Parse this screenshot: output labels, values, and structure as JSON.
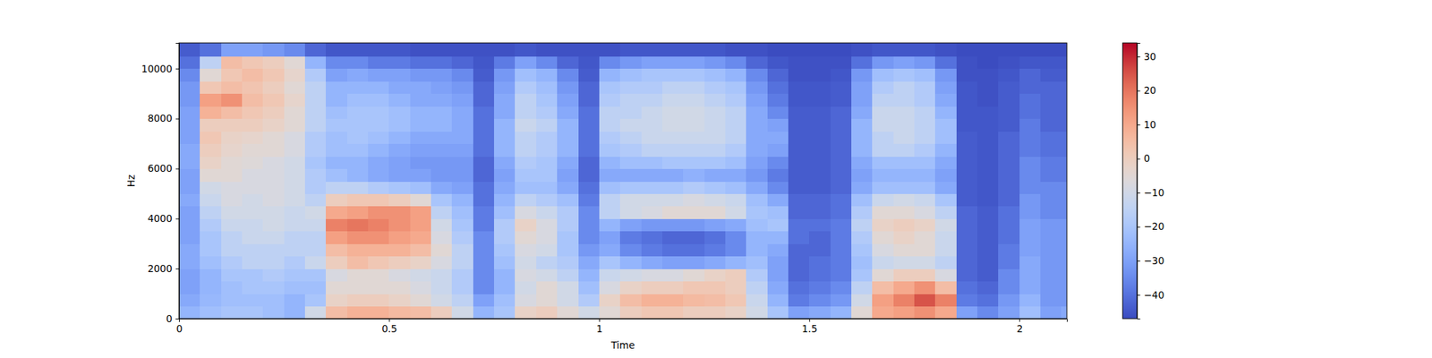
{
  "chart_data": {
    "type": "heatmap",
    "x_label": "Time",
    "y_label": "Hz",
    "xlim": [
      0,
      2.113
    ],
    "ylim": [
      0,
      11025
    ],
    "xticks": [
      0,
      0.5,
      1,
      1.5,
      2
    ],
    "yticks": [
      0,
      2000,
      4000,
      6000,
      8000,
      10000
    ],
    "x_edges": [
      0,
      0.05,
      0.1,
      0.15,
      0.2,
      0.25,
      0.3,
      0.35,
      0.4,
      0.45,
      0.5,
      0.55,
      0.6,
      0.65,
      0.7,
      0.75,
      0.8,
      0.85,
      0.9,
      0.95,
      1.0,
      1.05,
      1.1,
      1.15,
      1.2,
      1.25,
      1.3,
      1.35,
      1.4,
      1.45,
      1.5,
      1.55,
      1.6,
      1.65,
      1.7,
      1.75,
      1.8,
      1.85,
      1.9,
      1.95,
      2.0,
      2.05,
      2.1,
      2.113
    ],
    "y_edges": [
      0,
      500,
      1000,
      1500,
      2000,
      2500,
      3000,
      3500,
      4000,
      4500,
      5000,
      5500,
      6000,
      6500,
      7000,
      7500,
      8000,
      8500,
      9000,
      9500,
      10000,
      10500,
      11025
    ],
    "z": [
      [
        -25,
        -28,
        -30,
        -30,
        -28,
        -28,
        -30,
        -30,
        -30,
        -28,
        -30,
        -30,
        -28,
        -28,
        -30,
        -30,
        -30,
        -32,
        -32,
        -35,
        -40,
        -44
      ],
      [
        -22,
        -24,
        -25,
        -25,
        -22,
        -20,
        -20,
        -18,
        -15,
        -12,
        -10,
        -5,
        -2,
        0,
        2,
        0,
        8,
        12,
        2,
        -5,
        -15,
        -40
      ],
      [
        -20,
        -22,
        -22,
        -20,
        -18,
        -15,
        -15,
        -12,
        -10,
        -8,
        -8,
        -5,
        -5,
        -3,
        -2,
        0,
        5,
        15,
        5,
        2,
        5,
        -30
      ],
      [
        -20,
        -22,
        -20,
        -20,
        -15,
        -15,
        -12,
        -12,
        -10,
        -10,
        -8,
        -8,
        -6,
        -5,
        -3,
        0,
        2,
        5,
        3,
        5,
        2,
        -30
      ],
      [
        -22,
        -22,
        -20,
        -18,
        -15,
        -15,
        -12,
        -10,
        -10,
        -8,
        -8,
        -8,
        -8,
        -5,
        -5,
        -2,
        0,
        2,
        0,
        2,
        0,
        -32
      ],
      [
        -25,
        -25,
        -22,
        -20,
        -18,
        -15,
        -15,
        -12,
        -12,
        -10,
        -10,
        -10,
        -10,
        -8,
        -8,
        -5,
        -5,
        -3,
        -5,
        -3,
        -5,
        -35
      ],
      [
        -10,
        -20,
        -22,
        -20,
        -12,
        -15,
        -15,
        -12,
        -10,
        -15,
        -18,
        -18,
        -20,
        -18,
        -18,
        -15,
        -15,
        -15,
        -15,
        -18,
        -25,
        -42
      ],
      [
        5,
        -2,
        -5,
        -8,
        0,
        5,
        12,
        18,
        10,
        0,
        -15,
        -22,
        -25,
        -22,
        -22,
        -20,
        -22,
        -25,
        -25,
        -30,
        -35,
        -45
      ],
      [
        8,
        0,
        -5,
        -5,
        5,
        8,
        15,
        20,
        12,
        2,
        -15,
        -25,
        -25,
        -22,
        -20,
        -20,
        -20,
        -22,
        -25,
        -28,
        -35,
        -45
      ],
      [
        8,
        0,
        -5,
        -5,
        2,
        8,
        15,
        18,
        15,
        2,
        -18,
        -28,
        -28,
        -25,
        -22,
        -20,
        -20,
        -22,
        -25,
        -30,
        -38,
        -45
      ],
      [
        6,
        -2,
        -5,
        -8,
        0,
        8,
        12,
        15,
        15,
        0,
        -20,
        -30,
        -30,
        -28,
        -25,
        -22,
        -22,
        -25,
        -28,
        -30,
        -38,
        -45
      ],
      [
        5,
        -5,
        -8,
        -10,
        -2,
        5,
        10,
        12,
        12,
        -5,
        -22,
        -30,
        -32,
        -30,
        -28,
        -25,
        -25,
        -28,
        -28,
        -32,
        -40,
        -46
      ],
      [
        0,
        -10,
        -12,
        -12,
        -8,
        -5,
        -8,
        -10,
        -15,
        -20,
        -28,
        -32,
        -32,
        -30,
        -28,
        -25,
        -25,
        -28,
        -30,
        -32,
        -40,
        -46
      ],
      [
        -10,
        -15,
        -18,
        -18,
        -15,
        -15,
        -18,
        -20,
        -22,
        -25,
        -30,
        -32,
        -32,
        -30,
        -28,
        -28,
        -28,
        -30,
        -32,
        -35,
        -42,
        -46
      ],
      [
        -25,
        -30,
        -35,
        -35,
        -35,
        -35,
        -35,
        -38,
        -38,
        -40,
        -40,
        -42,
        -42,
        -40,
        -40,
        -40,
        -40,
        -42,
        -42,
        -44,
        -45,
        -46
      ],
      [
        -20,
        -22,
        -25,
        -25,
        -22,
        -20,
        -18,
        -18,
        -22,
        -25,
        -28,
        -30,
        -28,
        -25,
        -25,
        -25,
        -28,
        -28,
        -30,
        -32,
        -38,
        -46
      ],
      [
        -2,
        -8,
        -10,
        -8,
        -10,
        -8,
        -5,
        -2,
        -8,
        -15,
        -22,
        -20,
        -18,
        -15,
        -15,
        -12,
        -15,
        -15,
        -18,
        -22,
        -30,
        -45
      ],
      [
        0,
        -5,
        -5,
        -10,
        -15,
        -10,
        -8,
        -8,
        -12,
        -18,
        -22,
        -20,
        -20,
        -18,
        -18,
        -15,
        -18,
        -20,
        -22,
        -25,
        -35,
        -46
      ],
      [
        -5,
        -10,
        -10,
        -15,
        -18,
        -20,
        -20,
        -18,
        -18,
        -22,
        -28,
        -30,
        -28,
        -25,
        -25,
        -25,
        -28,
        -30,
        -32,
        -35,
        -42,
        -46
      ],
      [
        -10,
        -18,
        -22,
        -25,
        -28,
        -32,
        -35,
        -35,
        -35,
        -38,
        -40,
        -42,
        -42,
        -40,
        -40,
        -40,
        -40,
        -42,
        -42,
        -44,
        -45,
        -46
      ],
      [
        -5,
        -2,
        -8,
        -12,
        -20,
        -28,
        -30,
        -25,
        -15,
        -15,
        -22,
        -28,
        -25,
        -20,
        -18,
        -15,
        -15,
        -18,
        -20,
        -25,
        -35,
        -46
      ],
      [
        0,
        5,
        -2,
        -10,
        -25,
        -35,
        -38,
        -30,
        -10,
        -10,
        -20,
        -28,
        -22,
        -18,
        -15,
        -12,
        -15,
        -15,
        -18,
        -22,
        -32,
        -45
      ],
      [
        2,
        8,
        0,
        -8,
        -28,
        -38,
        -40,
        -32,
        -8,
        -10,
        -20,
        -28,
        -22,
        -15,
        -12,
        -12,
        -12,
        -15,
        -18,
        -20,
        -30,
        -45
      ],
      [
        2,
        8,
        0,
        -8,
        -30,
        -40,
        -42,
        -32,
        -5,
        -10,
        -20,
        -28,
        -20,
        -15,
        -12,
        -10,
        -10,
        -12,
        -15,
        -20,
        -30,
        -45
      ],
      [
        0,
        6,
        2,
        -5,
        -30,
        -40,
        -42,
        -32,
        -5,
        -8,
        -18,
        -26,
        -20,
        -15,
        -12,
        -10,
        -10,
        -12,
        -15,
        -20,
        -30,
        -45
      ],
      [
        0,
        5,
        2,
        -2,
        -28,
        -38,
        -40,
        -30,
        -5,
        -10,
        -20,
        -28,
        -20,
        -15,
        -12,
        -12,
        -12,
        -15,
        -18,
        -22,
        -32,
        -45
      ],
      [
        -2,
        2,
        0,
        0,
        -25,
        -35,
        -35,
        -28,
        -10,
        -12,
        -22,
        -28,
        -22,
        -18,
        -15,
        -15,
        -15,
        -18,
        -20,
        -25,
        -35,
        -46
      ],
      [
        -10,
        -12,
        -15,
        -18,
        -22,
        -25,
        -25,
        -22,
        -20,
        -22,
        -28,
        -32,
        -30,
        -28,
        -28,
        -28,
        -28,
        -30,
        -32,
        -35,
        -42,
        -46
      ],
      [
        -20,
        -25,
        -28,
        -30,
        -30,
        -28,
        -25,
        -20,
        -22,
        -28,
        -35,
        -38,
        -35,
        -30,
        -28,
        -30,
        -35,
        -38,
        -40,
        -42,
        -45,
        -47
      ],
      [
        -30,
        -38,
        -40,
        -42,
        -42,
        -42,
        -40,
        -40,
        -42,
        -42,
        -44,
        -44,
        -44,
        -44,
        -44,
        -44,
        -44,
        -45,
        -45,
        -46,
        -46,
        -47
      ],
      [
        -28,
        -35,
        -38,
        -40,
        -40,
        -42,
        -42,
        -40,
        -42,
        -42,
        -44,
        -44,
        -44,
        -44,
        -44,
        -44,
        -44,
        -45,
        -45,
        -46,
        -46,
        -47
      ],
      [
        -25,
        -32,
        -35,
        -38,
        -38,
        -38,
        -38,
        -38,
        -40,
        -40,
        -42,
        -42,
        -42,
        -42,
        -42,
        -42,
        -42,
        -44,
        -44,
        -45,
        -46,
        -47
      ],
      [
        -5,
        -10,
        -15,
        -20,
        -22,
        -20,
        -18,
        -15,
        -18,
        -22,
        -28,
        -30,
        -28,
        -25,
        -25,
        -25,
        -28,
        -30,
        -30,
        -32,
        -40,
        -46
      ],
      [
        10,
        12,
        5,
        -5,
        -12,
        -8,
        -5,
        -2,
        -5,
        -12,
        -22,
        -25,
        -22,
        -15,
        -15,
        -12,
        -12,
        -15,
        -18,
        -22,
        -32,
        -45
      ],
      [
        12,
        18,
        10,
        0,
        -10,
        -5,
        -2,
        0,
        -5,
        -10,
        -22,
        -25,
        -22,
        -15,
        -12,
        -12,
        -12,
        -15,
        -15,
        -20,
        -30,
        -45
      ],
      [
        15,
        25,
        15,
        0,
        -10,
        -5,
        -5,
        -2,
        -8,
        -12,
        -22,
        -25,
        -22,
        -18,
        -15,
        -15,
        -15,
        -18,
        -18,
        -22,
        -32,
        -45
      ],
      [
        10,
        18,
        5,
        -8,
        -15,
        -12,
        -12,
        -10,
        -15,
        -20,
        -28,
        -30,
        -28,
        -25,
        -22,
        -22,
        -25,
        -28,
        -30,
        -32,
        -40,
        -46
      ],
      [
        -30,
        -38,
        -40,
        -42,
        -42,
        -42,
        -42,
        -42,
        -42,
        -44,
        -44,
        -44,
        -44,
        -44,
        -44,
        -45,
        -45,
        -45,
        -45,
        -46,
        -46,
        -47
      ],
      [
        -35,
        -40,
        -42,
        -44,
        -44,
        -44,
        -44,
        -44,
        -44,
        -45,
        -45,
        -45,
        -45,
        -45,
        -45,
        -45,
        -45,
        -46,
        -46,
        -46,
        -47,
        -47
      ],
      [
        -30,
        -32,
        -35,
        -35,
        -38,
        -38,
        -40,
        -40,
        -40,
        -42,
        -42,
        -42,
        -42,
        -42,
        -42,
        -44,
        -44,
        -44,
        -44,
        -45,
        -46,
        -47
      ],
      [
        -22,
        -25,
        -28,
        -28,
        -28,
        -30,
        -30,
        -30,
        -32,
        -32,
        -35,
        -35,
        -35,
        -38,
        -38,
        -38,
        -40,
        -40,
        -42,
        -42,
        -45,
        -47
      ],
      [
        -30,
        -32,
        -32,
        -32,
        -32,
        -32,
        -32,
        -32,
        -35,
        -35,
        -35,
        -38,
        -38,
        -40,
        -40,
        -42,
        -42,
        -42,
        -42,
        -44,
        -45,
        -47
      ],
      [
        -28,
        -32,
        -32,
        -32,
        -32,
        -32,
        -32,
        -32,
        -35,
        -35,
        -35,
        -38,
        -38,
        -40,
        -40,
        -42,
        -42,
        -42,
        -42,
        -44,
        -45,
        -47
      ]
    ],
    "colorbar": {
      "range": [
        -47,
        34
      ],
      "ticks": [
        {
          "value": -40,
          "label": "−40"
        },
        {
          "value": -30,
          "label": "−30"
        },
        {
          "value": -20,
          "label": "−20"
        },
        {
          "value": -10,
          "label": "−10"
        },
        0,
        10,
        20,
        30
      ]
    }
  }
}
